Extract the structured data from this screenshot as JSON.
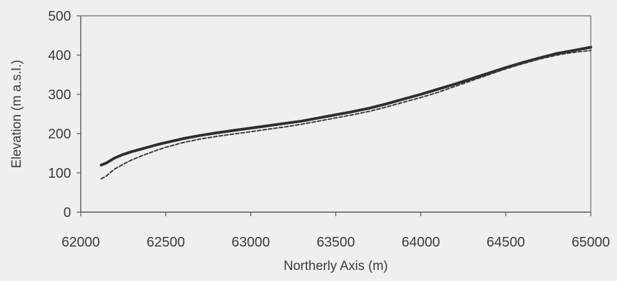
{
  "chart_data": {
    "type": "line",
    "xlabel": "Northerly Axis (m)",
    "ylabel": "Elevation (m a.s.l.)",
    "xlim": [
      62000,
      65000
    ],
    "ylim": [
      0,
      500
    ],
    "xticks": [
      62000,
      62500,
      63000,
      63500,
      64000,
      64500,
      65000
    ],
    "yticks": [
      0,
      100,
      200,
      300,
      400,
      500
    ],
    "grid": false,
    "legend": "none",
    "series": [
      {
        "style": "solid",
        "color": "#2e2e2e",
        "x": [
          62120,
          62150,
          62200,
          62250,
          62300,
          62350,
          62400,
          62450,
          62500,
          62600,
          62700,
          62800,
          62900,
          63000,
          63100,
          63200,
          63300,
          63400,
          63500,
          63600,
          63700,
          63800,
          63900,
          64000,
          64100,
          64200,
          64300,
          64400,
          64500,
          64600,
          64700,
          64800,
          64900,
          65000
        ],
        "y": [
          120,
          125,
          138,
          147,
          154,
          160,
          166,
          172,
          177,
          187,
          195,
          202,
          208,
          214,
          220,
          226,
          232,
          240,
          248,
          256,
          265,
          276,
          288,
          300,
          313,
          326,
          340,
          354,
          368,
          381,
          393,
          404,
          412,
          420
        ]
      },
      {
        "style": "dashed",
        "color": "#3a3a3a",
        "x": [
          62120,
          62150,
          62200,
          62250,
          62300,
          62350,
          62400,
          62450,
          62500,
          62600,
          62700,
          62800,
          62900,
          63000,
          63100,
          63200,
          63300,
          63400,
          63500,
          63600,
          63700,
          63800,
          63900,
          64000,
          64100,
          64200,
          64300,
          64400,
          64500,
          64600,
          64700,
          64800,
          64900,
          65000
        ],
        "y": [
          85,
          92,
          110,
          122,
          133,
          142,
          150,
          158,
          165,
          177,
          186,
          193,
          199,
          205,
          211,
          217,
          224,
          232,
          240,
          248,
          257,
          268,
          280,
          292,
          305,
          320,
          335,
          350,
          365,
          378,
          390,
          400,
          407,
          412
        ]
      }
    ]
  }
}
